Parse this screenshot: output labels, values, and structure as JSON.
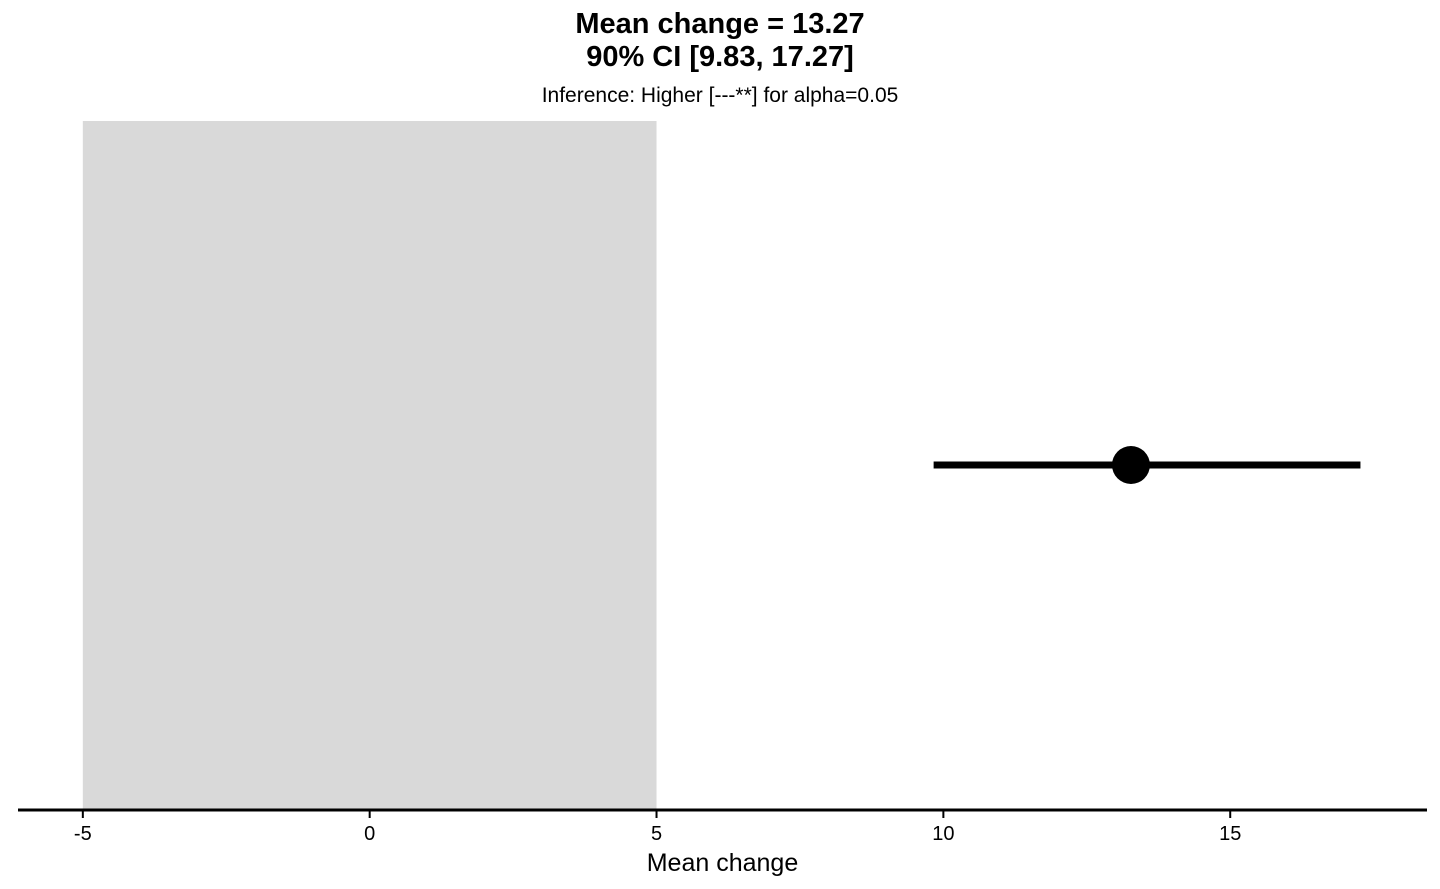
{
  "chart_data": {
    "type": "scatter",
    "title_lines": [
      "Mean change = 13.27",
      "90% CI [9.83, 17.27]"
    ],
    "subtitle": "Inference: Higher [---**] for alpha=0.05",
    "xlabel": "Mean change",
    "ylabel": "",
    "xlim": [
      -6.13,
      18.43
    ],
    "x_ticks": [
      {
        "value": -5,
        "label": "-5"
      },
      {
        "value": 0,
        "label": "0"
      },
      {
        "value": 5,
        "label": "5"
      },
      {
        "value": 10,
        "label": "10"
      },
      {
        "value": 15,
        "label": "15"
      }
    ],
    "region": {
      "x_min": -5,
      "x_max": 5,
      "color": "#d9d9d9"
    },
    "estimate": {
      "value": 13.27,
      "ci_lower": 9.83,
      "ci_upper": 17.27,
      "color": "#000000"
    },
    "grid": false,
    "legend": "none"
  }
}
